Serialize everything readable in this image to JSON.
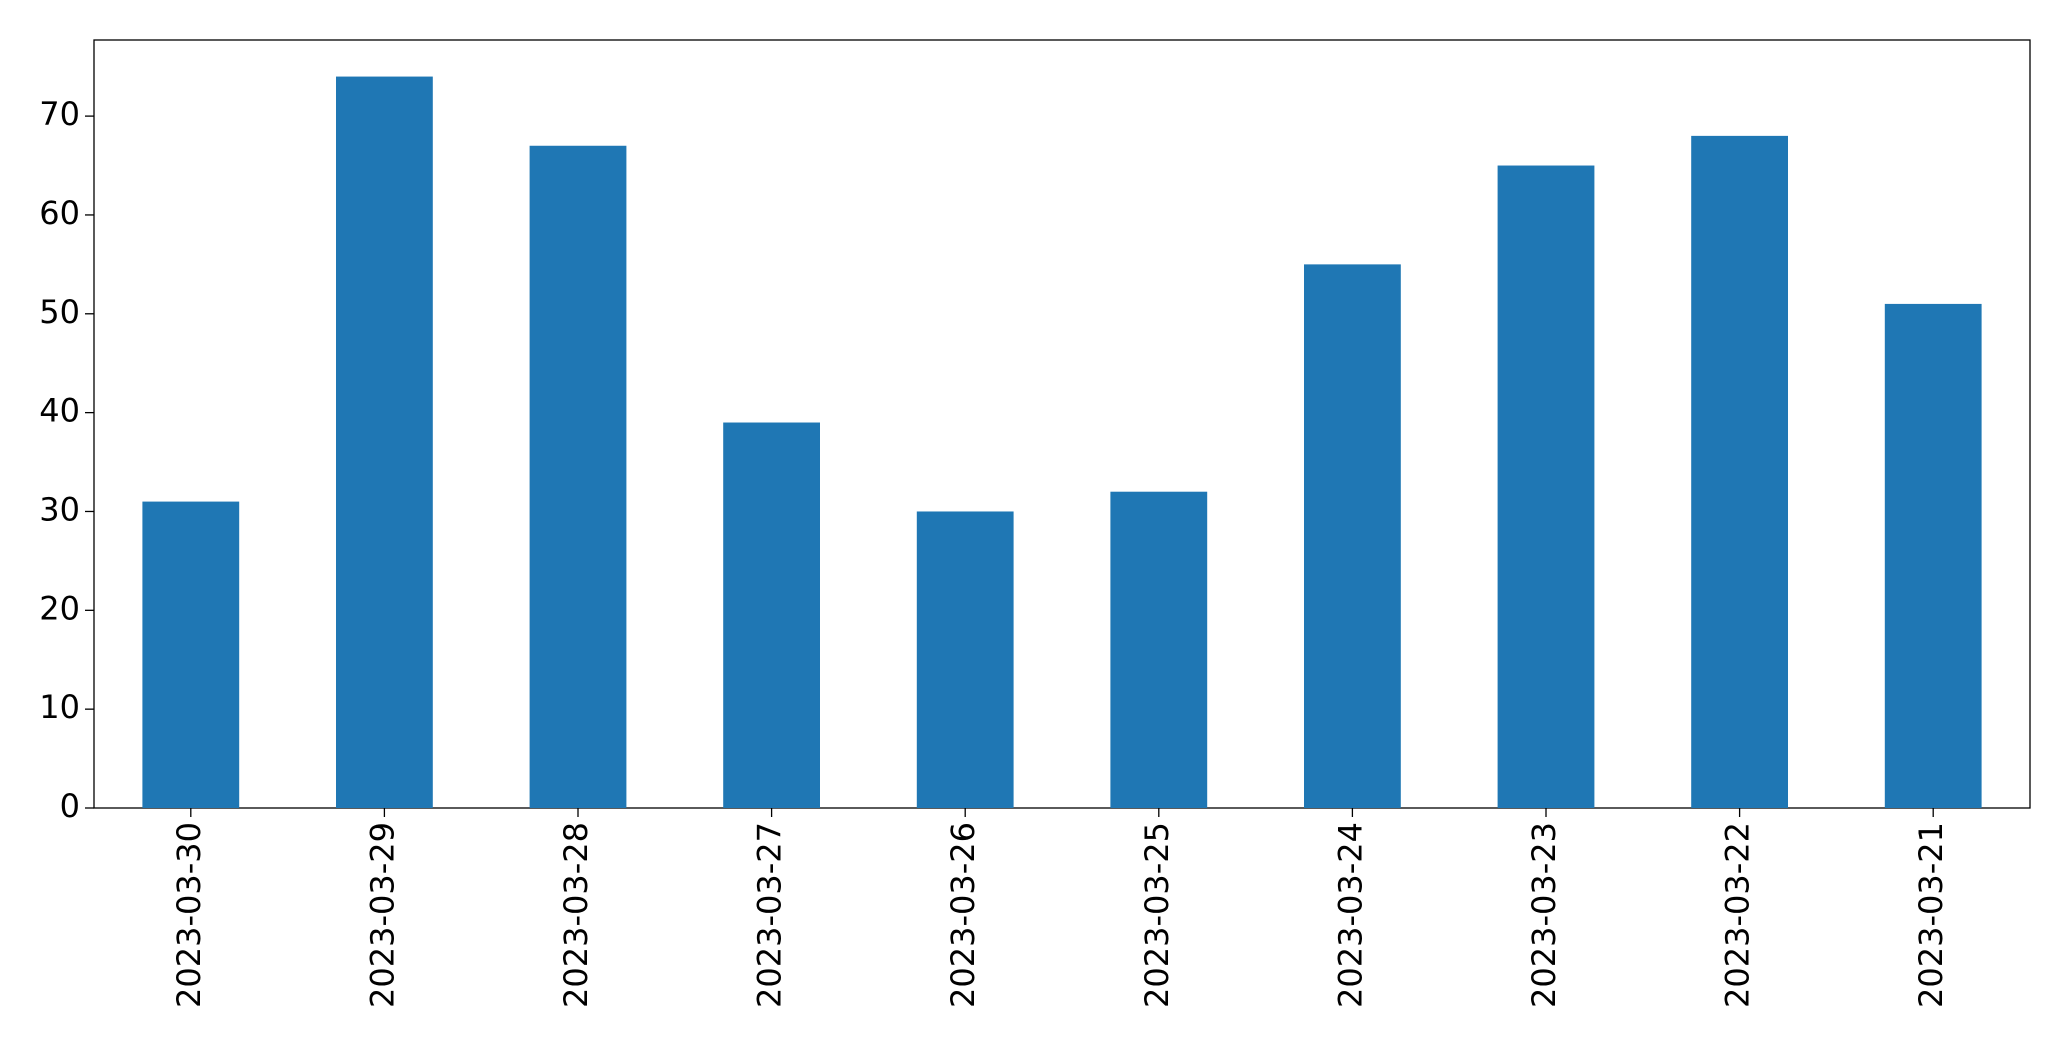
{
  "chart_data": {
    "type": "bar",
    "categories": [
      "2023-03-30",
      "2023-03-29",
      "2023-03-28",
      "2023-03-27",
      "2023-03-26",
      "2023-03-25",
      "2023-03-24",
      "2023-03-23",
      "2023-03-22",
      "2023-03-21"
    ],
    "values": [
      31,
      74,
      67,
      39,
      30,
      32,
      55,
      65,
      68,
      51
    ],
    "color": "#1f77b4",
    "ylim": [
      0,
      77.7
    ],
    "yticks": [
      0,
      10,
      20,
      30,
      40,
      50,
      60,
      70
    ],
    "grid": false
  }
}
